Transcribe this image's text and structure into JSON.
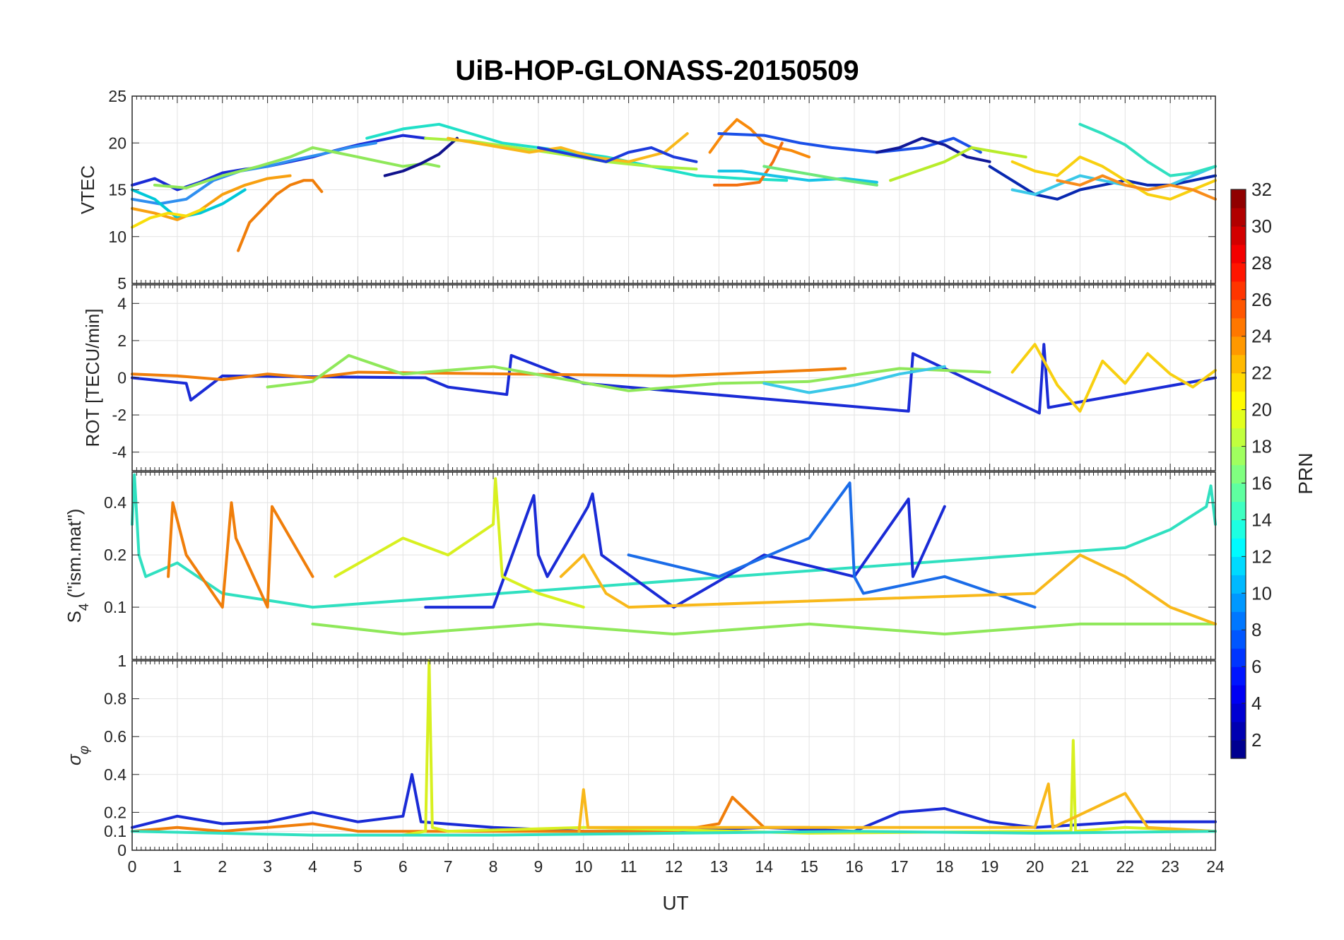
{
  "chart_data": [
    {
      "type": "line",
      "title": "UiB-HOP-GLONASS-20150509",
      "ylabel": "VTEC",
      "xlabel": "",
      "xlim": [
        0,
        24
      ],
      "ylim": [
        5,
        25
      ],
      "yticks": [
        5,
        10,
        15,
        20,
        25
      ],
      "grid": true,
      "color_by": "PRN",
      "series": [
        {
          "color": "#1a2bd6",
          "x": [
            0,
            0.5,
            1,
            1.5,
            2,
            2.5,
            3,
            3.5,
            4,
            4.5,
            5,
            5.5,
            6,
            6.5
          ],
          "y": [
            15.5,
            16.2,
            15,
            15.8,
            16.8,
            17.2,
            17.5,
            18,
            18.5,
            19.2,
            19.8,
            20.3,
            20.8,
            20.5
          ]
        },
        {
          "color": "#2f8ff0",
          "x": [
            0,
            0.6,
            1.2,
            1.8,
            2.4,
            3,
            3.6,
            4.2,
            4.8,
            5.4
          ],
          "y": [
            14,
            13.5,
            14,
            16,
            17,
            17.5,
            18.2,
            18.8,
            19.5,
            20
          ]
        },
        {
          "color": "#00c8d8",
          "x": [
            0,
            0.5,
            1,
            1.5,
            2,
            2.5
          ],
          "y": [
            15,
            14,
            12,
            12.5,
            13.5,
            15
          ]
        },
        {
          "color": "#f07e0a",
          "x": [
            2.35,
            2.6,
            2.9,
            3.2,
            3.5,
            3.8,
            4.0,
            4.2
          ],
          "y": [
            8.5,
            11.5,
            13,
            14.5,
            15.5,
            16,
            16,
            14.8
          ]
        },
        {
          "color": "#f8a010",
          "x": [
            0,
            0.5,
            1,
            1.5,
            2,
            2.5,
            3,
            3.5
          ],
          "y": [
            13,
            12.5,
            11.8,
            12.8,
            14.5,
            15.5,
            16.2,
            16.5
          ]
        },
        {
          "color": "#f8de0a",
          "x": [
            0,
            0.4,
            0.8,
            1.2,
            1.6
          ],
          "y": [
            11,
            12,
            12.5,
            12.2,
            13
          ]
        },
        {
          "color": "#8fe85a",
          "x": [
            0.5,
            1.2,
            2,
            2.8,
            3.5,
            4,
            4.5,
            5,
            5.5,
            6,
            6.5,
            6.8
          ],
          "y": [
            15.5,
            15.2,
            16.5,
            17.5,
            18.5,
            19.5,
            19,
            18.5,
            18,
            17.5,
            17.8,
            17.5
          ]
        },
        {
          "color": "#10128c",
          "x": [
            5.6,
            6.0,
            6.4,
            6.8,
            7.2
          ],
          "y": [
            16.5,
            17,
            17.8,
            18.8,
            20.5
          ]
        },
        {
          "color": "#20e0c8",
          "x": [
            5.2,
            6,
            6.8,
            7.5,
            8.2,
            9,
            9.8,
            10.5,
            11.5,
            12.5,
            13.5,
            14.5
          ],
          "y": [
            20.5,
            21.5,
            22,
            21,
            20,
            19.5,
            19,
            18.5,
            17.5,
            16.5,
            16.2,
            16
          ]
        },
        {
          "color": "#aaf040",
          "x": [
            6.5,
            7.5,
            8.5,
            9.5,
            10.5,
            11.5,
            12.5
          ],
          "y": [
            20.5,
            20.2,
            19.5,
            18.8,
            18,
            17.5,
            17.2
          ]
        },
        {
          "color": "#f8b81a",
          "x": [
            7,
            7.6,
            8.2,
            8.8,
            9.5,
            10.2,
            11,
            11.8,
            12.3
          ],
          "y": [
            20.5,
            20,
            19.5,
            19,
            19.5,
            18.5,
            18,
            19,
            21
          ]
        },
        {
          "color": "#1c3adc",
          "x": [
            9,
            10,
            10.5,
            11,
            11.5,
            12,
            12.5
          ],
          "y": [
            19.5,
            18.5,
            18,
            19,
            19.5,
            18.5,
            18
          ]
        },
        {
          "color": "#f88a0a",
          "x": [
            12.8,
            13.1,
            13.4,
            13.7,
            14,
            14.3,
            14.6,
            15
          ],
          "y": [
            19,
            21,
            22.5,
            21.5,
            20,
            19.5,
            19.2,
            18.5
          ]
        },
        {
          "color": "#f47010",
          "x": [
            12.9,
            13.4,
            13.9,
            14.2,
            14.4
          ],
          "y": [
            15.5,
            15.5,
            15.8,
            18,
            20
          ]
        },
        {
          "color": "#1a50e8",
          "x": [
            13,
            14,
            14.8,
            15.5,
            16.5,
            17.5,
            18.2,
            18.8
          ],
          "y": [
            21,
            20.8,
            20,
            19.5,
            19,
            19.5,
            20.5,
            19
          ]
        },
        {
          "color": "#18c4e6",
          "x": [
            13,
            13.5,
            14.2,
            15,
            15.8,
            16.5
          ],
          "y": [
            17,
            17,
            16.5,
            16,
            16.2,
            15.8
          ]
        },
        {
          "color": "#6ee87a",
          "x": [
            14,
            14.6,
            15.2,
            15.8,
            16.5
          ],
          "y": [
            17.5,
            17,
            16.5,
            16,
            15.5
          ]
        },
        {
          "color": "#101898",
          "x": [
            16.5,
            17,
            17.5,
            18,
            18.5,
            19
          ],
          "y": [
            19,
            19.5,
            20.5,
            19.8,
            18.5,
            18
          ]
        },
        {
          "color": "#b8ec2a",
          "x": [
            16.8,
            17.4,
            18,
            18.6,
            19.2,
            19.8
          ],
          "y": [
            16,
            17,
            18,
            19.5,
            19,
            18.5
          ]
        },
        {
          "color": "#0828b0",
          "x": [
            19,
            19.5,
            20,
            20.5,
            21,
            21.5,
            22,
            22.5,
            23,
            23.5,
            24
          ],
          "y": [
            17.5,
            16,
            14.5,
            14,
            15,
            15.5,
            16,
            15.5,
            15.5,
            16,
            16.5
          ]
        },
        {
          "color": "#3ac8e8",
          "x": [
            19.5,
            20,
            20.5,
            21,
            21.5,
            22,
            22.5,
            23,
            23.5,
            24
          ],
          "y": [
            15,
            14.5,
            15.5,
            16.5,
            16,
            15.5,
            15,
            15.5,
            16.5,
            17.5
          ]
        },
        {
          "color": "#f8d010",
          "x": [
            19.5,
            20,
            20.5,
            21,
            21.5,
            22,
            22.5,
            23,
            23.5,
            24
          ],
          "y": [
            18,
            17,
            16.5,
            18.5,
            17.5,
            16,
            14.5,
            14,
            15,
            16
          ]
        },
        {
          "color": "#f88c1a",
          "x": [
            20.5,
            21,
            21.5,
            22,
            22.5,
            23,
            23.5,
            24
          ],
          "y": [
            16,
            15.5,
            16.5,
            15.5,
            15,
            15.5,
            15,
            14
          ]
        },
        {
          "color": "#30e0c0",
          "x": [
            21,
            21.5,
            22,
            22.5,
            23,
            23.5,
            24
          ],
          "y": [
            22,
            21,
            19.8,
            18,
            16.5,
            16.8,
            17.5
          ]
        }
      ]
    },
    {
      "type": "line",
      "title": "",
      "ylabel": "ROT [TECU/min]",
      "xlabel": "",
      "xlim": [
        0,
        24
      ],
      "ylim": [
        -5,
        5
      ],
      "yticks": [
        -4,
        -2,
        0,
        2,
        4
      ],
      "grid": true,
      "color_by": "PRN",
      "series": [
        {
          "color": "#1a2bd6",
          "x": [
            0,
            1.2,
            1.3,
            2,
            6.5,
            7,
            8.3,
            8.4,
            10,
            17.2,
            17.3,
            20.1,
            20.2,
            20.3,
            24
          ],
          "y": [
            0,
            -0.3,
            -1.2,
            0.1,
            0,
            -0.5,
            -0.9,
            1.2,
            -0.3,
            -1.8,
            1.3,
            -1.9,
            1.8,
            -1.6,
            0
          ]
        },
        {
          "color": "#f07e0a",
          "x": [
            0,
            1,
            2,
            3,
            4,
            5,
            12,
            13,
            14,
            15,
            15.8
          ],
          "y": [
            0.2,
            0.1,
            -0.1,
            0.2,
            0,
            0.3,
            0.1,
            0.2,
            0.3,
            0.4,
            0.5
          ]
        },
        {
          "color": "#8fe85a",
          "x": [
            3,
            4,
            4.8,
            6,
            8,
            11,
            13,
            15,
            17,
            19
          ],
          "y": [
            -0.5,
            -0.2,
            1.2,
            0.2,
            0.6,
            -0.7,
            -0.3,
            -0.2,
            0.5,
            0.3
          ]
        },
        {
          "color": "#f8d010",
          "x": [
            19.5,
            20,
            20.5,
            21,
            21.5,
            22,
            22.5,
            23,
            23.5,
            24
          ],
          "y": [
            0.3,
            1.8,
            -0.4,
            -1.8,
            0.9,
            -0.3,
            1.3,
            0.2,
            -0.5,
            0.4
          ]
        },
        {
          "color": "#3ac8e8",
          "x": [
            14,
            15,
            16,
            17,
            18
          ],
          "y": [
            -0.3,
            -0.8,
            -0.4,
            0.2,
            0.6
          ]
        }
      ]
    },
    {
      "type": "line",
      "title": "",
      "ylabel": "S4 (\"ism.mat\")",
      "xlabel": "",
      "xlim": [
        0,
        24
      ],
      "ylim": [
        0.05,
        0.6
      ],
      "yscale": "log",
      "yticks": [
        0.1,
        0.2,
        0.4
      ],
      "grid": true,
      "color_by": "PRN",
      "series": [
        {
          "color": "#30e0c0",
          "x": [
            0,
            0.05,
            0.15,
            0.3,
            1,
            2,
            4,
            22,
            23,
            23.8,
            23.9,
            24
          ],
          "y": [
            0.3,
            0.58,
            0.2,
            0.15,
            0.18,
            0.12,
            0.1,
            0.22,
            0.28,
            0.38,
            0.5,
            0.3
          ]
        },
        {
          "color": "#f07e0a",
          "x": [
            0.8,
            0.9,
            1.2,
            2,
            2.2,
            2.3,
            3,
            3.1,
            4
          ],
          "y": [
            0.15,
            0.4,
            0.2,
            0.1,
            0.4,
            0.25,
            0.1,
            0.38,
            0.15
          ]
        },
        {
          "color": "#1a2bd6",
          "x": [
            6.5,
            8,
            8.9,
            9,
            9.2,
            10.1,
            10.2,
            10.4,
            12,
            14,
            16,
            17.2,
            17.3,
            18
          ],
          "y": [
            0.1,
            0.1,
            0.44,
            0.2,
            0.15,
            0.38,
            0.45,
            0.2,
            0.1,
            0.2,
            0.15,
            0.42,
            0.15,
            0.38
          ]
        },
        {
          "color": "#d8f020",
          "x": [
            4.5,
            6,
            7,
            8,
            8.05,
            8.2,
            9,
            10
          ],
          "y": [
            0.15,
            0.25,
            0.2,
            0.3,
            0.55,
            0.15,
            0.12,
            0.1
          ]
        },
        {
          "color": "#1a6ce8",
          "x": [
            11,
            13,
            15,
            15.9,
            16,
            16.2,
            18,
            20
          ],
          "y": [
            0.2,
            0.15,
            0.25,
            0.52,
            0.15,
            0.12,
            0.15,
            0.1
          ]
        },
        {
          "color": "#8fe85a",
          "x": [
            4,
            6,
            9,
            12,
            15,
            18,
            21,
            24
          ],
          "y": [
            0.08,
            0.07,
            0.08,
            0.07,
            0.08,
            0.07,
            0.08,
            0.08
          ]
        },
        {
          "color": "#f8b81a",
          "x": [
            9.5,
            10,
            10.5,
            11,
            20,
            21,
            22,
            23,
            24
          ],
          "y": [
            0.15,
            0.2,
            0.12,
            0.1,
            0.12,
            0.2,
            0.15,
            0.1,
            0.08
          ]
        }
      ]
    },
    {
      "type": "line",
      "title": "",
      "ylabel": "σφ",
      "xlabel": "UT",
      "xlim": [
        0,
        24
      ],
      "ylim": [
        0,
        1
      ],
      "yticks": [
        0,
        0.1,
        0.2,
        0.4,
        0.6,
        0.8,
        1
      ],
      "xticks": [
        0,
        1,
        2,
        3,
        4,
        5,
        6,
        7,
        8,
        9,
        10,
        11,
        12,
        13,
        14,
        15,
        16,
        17,
        18,
        19,
        20,
        21,
        22,
        23,
        24
      ],
      "grid": true,
      "color_by": "PRN",
      "series": [
        {
          "color": "#1a2bd6",
          "x": [
            0,
            1,
            2,
            3,
            4,
            5,
            6,
            6.2,
            6.4,
            8,
            10,
            12,
            14,
            16,
            17,
            18,
            19,
            20,
            22,
            24
          ],
          "y": [
            0.12,
            0.18,
            0.14,
            0.15,
            0.2,
            0.15,
            0.18,
            0.4,
            0.15,
            0.12,
            0.1,
            0.1,
            0.12,
            0.1,
            0.2,
            0.22,
            0.15,
            0.12,
            0.15,
            0.15
          ]
        },
        {
          "color": "#f07e0a",
          "x": [
            0,
            1,
            2,
            3,
            4,
            5,
            12,
            13,
            13.3,
            14,
            15
          ],
          "y": [
            0.1,
            0.12,
            0.1,
            0.12,
            0.14,
            0.1,
            0.1,
            0.14,
            0.28,
            0.12,
            0.12
          ]
        },
        {
          "color": "#d8f020",
          "x": [
            6,
            6.5,
            6.58,
            6.65,
            7,
            10,
            15,
            20,
            20.8,
            20.85,
            20.9,
            22,
            24
          ],
          "y": [
            0.08,
            0.1,
            1.0,
            0.12,
            0.1,
            0.12,
            0.09,
            0.1,
            0.1,
            0.58,
            0.1,
            0.12,
            0.1
          ]
        },
        {
          "color": "#f8b81a",
          "x": [
            9.9,
            10,
            10.1,
            20,
            20.3,
            20.4,
            22,
            22.5,
            24
          ],
          "y": [
            0.1,
            0.32,
            0.12,
            0.12,
            0.35,
            0.12,
            0.3,
            0.12,
            0.1
          ]
        },
        {
          "color": "#30e0c0",
          "x": [
            0,
            4,
            8,
            12,
            16,
            20,
            24
          ],
          "y": [
            0.1,
            0.08,
            0.08,
            0.09,
            0.1,
            0.09,
            0.1
          ]
        }
      ]
    }
  ],
  "colorbar": {
    "label": "PRN",
    "ticks": [
      2,
      4,
      6,
      8,
      10,
      12,
      14,
      16,
      18,
      20,
      22,
      24,
      26,
      28,
      30,
      32
    ],
    "min": 1,
    "max": 32,
    "colormap": "jet"
  },
  "labels": {
    "title": "UiB-HOP-GLONASS-20150509",
    "xlabel": "UT",
    "ylabel_vtec": "VTEC",
    "ylabel_rot": "ROT [TECU/min]",
    "ylabel_s4_main": "S",
    "ylabel_s4_sub": "4",
    "ylabel_s4_rest": " (\"ism.mat\")",
    "ylabel_sigma_main": "σ",
    "ylabel_sigma_sub": "φ",
    "colorbar_label": "PRN"
  }
}
